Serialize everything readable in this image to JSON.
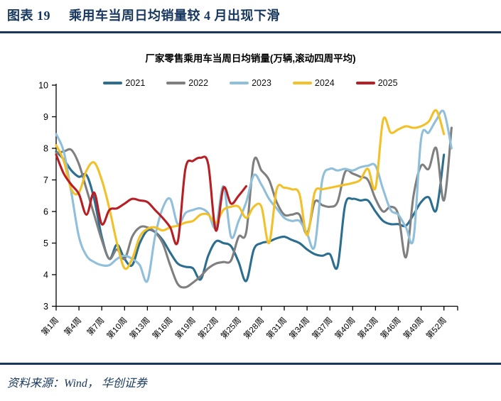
{
  "header": {
    "label": "图表 19",
    "title": "乘用车当周日均销量较 4 月出现下滑"
  },
  "footer": {
    "source": "资料来源：Wind， 华创证券"
  },
  "chart_data": {
    "type": "line",
    "title": "厂家零售乘用车当周日均销量(万辆,滚动四周平均)",
    "xlabel": "",
    "ylabel": "",
    "ylim": [
      3,
      10
    ],
    "y_ticks": [
      "3",
      "4",
      "5",
      "6",
      "7",
      "8",
      "9",
      "10"
    ],
    "x_range_weeks": [
      1,
      53
    ],
    "x_tick_weeks": [
      1,
      4,
      7,
      10,
      13,
      16,
      19,
      22,
      25,
      28,
      31,
      34,
      37,
      40,
      43,
      46,
      49,
      52
    ],
    "x_tick_labels": [
      "第1周",
      "第4周",
      "第7周",
      "第10周",
      "第13周",
      "第16周",
      "第19周",
      "第22周",
      "第25周",
      "第28周",
      "第31周",
      "第34周",
      "第37周",
      "第40周",
      "第43周",
      "第46周",
      "第49周",
      "第52周"
    ],
    "grid": false,
    "legend_position": "top",
    "series": [
      {
        "name": "2021",
        "color": "#2C6E8F",
        "start_week": 1,
        "values": [
          7.9,
          7.65,
          7.3,
          7.1,
          7.15,
          6.4,
          5.2,
          4.5,
          4.95,
          4.5,
          4.3,
          5.0,
          5.4,
          5.35,
          5.1,
          4.7,
          4.35,
          4.25,
          4.2,
          3.85,
          4.6,
          5.05,
          5.0,
          4.9,
          4.4,
          3.8,
          4.8,
          5.0,
          5.05,
          5.15,
          5.2,
          5.1,
          5.0,
          4.8,
          4.65,
          4.6,
          4.65,
          4.25,
          6.2,
          6.4,
          6.35,
          6.35,
          6.0,
          5.7,
          5.6,
          5.6,
          5.55,
          5.9,
          6.3,
          6.45,
          6.05,
          7.8
        ]
      },
      {
        "name": "2022",
        "color": "#7F7F7F",
        "start_week": 1,
        "values": [
          7.85,
          7.9,
          7.95,
          7.5,
          6.7,
          5.9,
          5.1,
          4.5,
          4.8,
          4.5,
          5.2,
          5.5,
          5.5,
          5.35,
          5.0,
          4.3,
          3.7,
          3.6,
          3.75,
          3.95,
          4.2,
          4.35,
          4.4,
          4.45,
          5.2,
          5.35,
          7.6,
          7.3,
          7.0,
          6.3,
          5.9,
          5.9,
          5.9,
          5.3,
          6.3,
          6.2,
          6.15,
          6.3,
          7.25,
          7.2,
          7.1,
          7.0,
          6.4,
          6.0,
          6.15,
          5.9,
          4.55,
          6.5,
          7.45,
          7.35,
          8.0,
          6.35,
          8.65
        ]
      },
      {
        "name": "2023",
        "color": "#8FBFDA",
        "start_week": 1,
        "values": [
          8.45,
          7.9,
          6.6,
          5.2,
          4.6,
          4.4,
          4.3,
          4.3,
          4.5,
          4.6,
          4.5,
          4.3,
          3.8,
          5.2,
          6.1,
          6.4,
          5.6,
          5.95,
          6.05,
          6.1,
          5.95,
          5.5,
          6.8,
          5.2,
          5.7,
          6.3,
          7.15,
          6.85,
          6.4,
          6.1,
          5.8,
          5.7,
          5.7,
          5.3,
          4.9,
          7.0,
          7.35,
          7.3,
          7.35,
          7.3,
          7.4,
          7.45,
          7.45,
          6.7,
          6.05,
          5.9,
          5.5,
          5.15,
          8.3,
          8.5,
          8.9,
          9.15,
          8.0
        ]
      },
      {
        "name": "2024",
        "color": "#F2C027",
        "start_week": 1,
        "values": [
          8.1,
          7.6,
          6.7,
          6.6,
          7.3,
          7.55,
          7.0,
          6.1,
          5.0,
          4.2,
          4.5,
          5.2,
          5.45,
          5.5,
          5.4,
          5.5,
          5.55,
          5.65,
          5.7,
          5.9,
          5.9,
          5.65,
          6.05,
          6.15,
          6.15,
          5.8,
          6.15,
          6.15,
          5.0,
          6.7,
          6.75,
          6.7,
          6.55,
          5.25,
          6.6,
          6.7,
          6.75,
          6.8,
          6.85,
          6.9,
          7.0,
          7.35,
          6.75,
          8.9,
          8.5,
          8.6,
          8.7,
          8.65,
          8.7,
          8.85,
          9.2,
          8.45
        ]
      },
      {
        "name": "2025",
        "color": "#B71F25",
        "start_week": 1,
        "values": [
          7.8,
          7.2,
          6.85,
          6.55,
          5.9,
          6.6,
          5.6,
          6.05,
          6.1,
          6.25,
          6.4,
          6.35,
          6.3,
          6.05,
          5.8,
          5.5,
          5.05,
          7.35,
          7.6,
          7.7,
          7.5,
          5.4,
          6.75,
          6.25,
          6.5,
          6.8
        ]
      }
    ]
  }
}
